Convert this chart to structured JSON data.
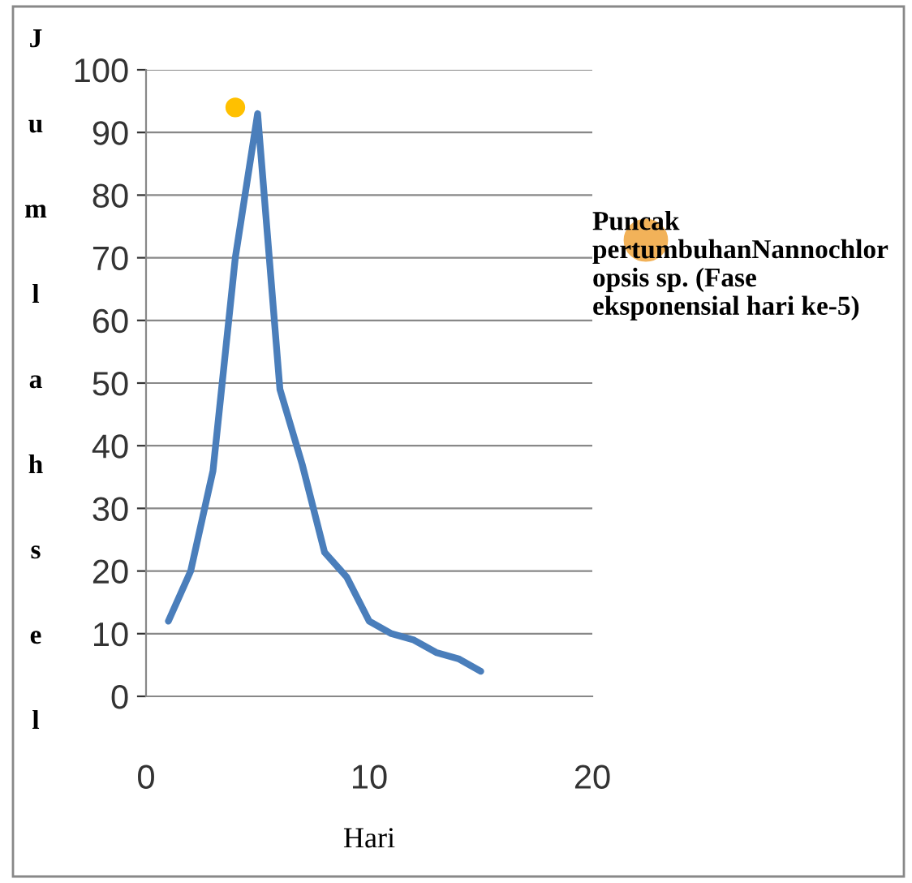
{
  "chart_data": {
    "type": "line",
    "xlabel": "Hari",
    "ylabel": "Jumlah sel",
    "series": [
      {
        "color": "#4a7ebb",
        "x": [
          1,
          2,
          3,
          4,
          5,
          6,
          7,
          8,
          9,
          10,
          11,
          12,
          13,
          14,
          15
        ],
        "values": [
          12,
          20,
          36,
          70,
          93,
          49,
          37,
          23,
          19,
          12,
          10,
          9,
          7,
          6,
          4
        ]
      },
      {
        "type": "scatter",
        "marker": "circle",
        "color": "#ffc000",
        "x": [
          4
        ],
        "values": [
          94
        ]
      }
    ],
    "annotations": [
      "Puncak pertumbuhanNannochloropsis sp. (Fase eksponensial hari ke-5)"
    ],
    "xlim": [
      0,
      20
    ],
    "xticks": [
      0,
      10,
      20
    ],
    "ylim": [
      0,
      100
    ],
    "yticks": [
      0,
      10,
      20,
      30,
      40,
      50,
      60,
      70,
      80,
      90,
      100
    ],
    "grid": "y",
    "marker": "none",
    "line_style": "solid"
  }
}
